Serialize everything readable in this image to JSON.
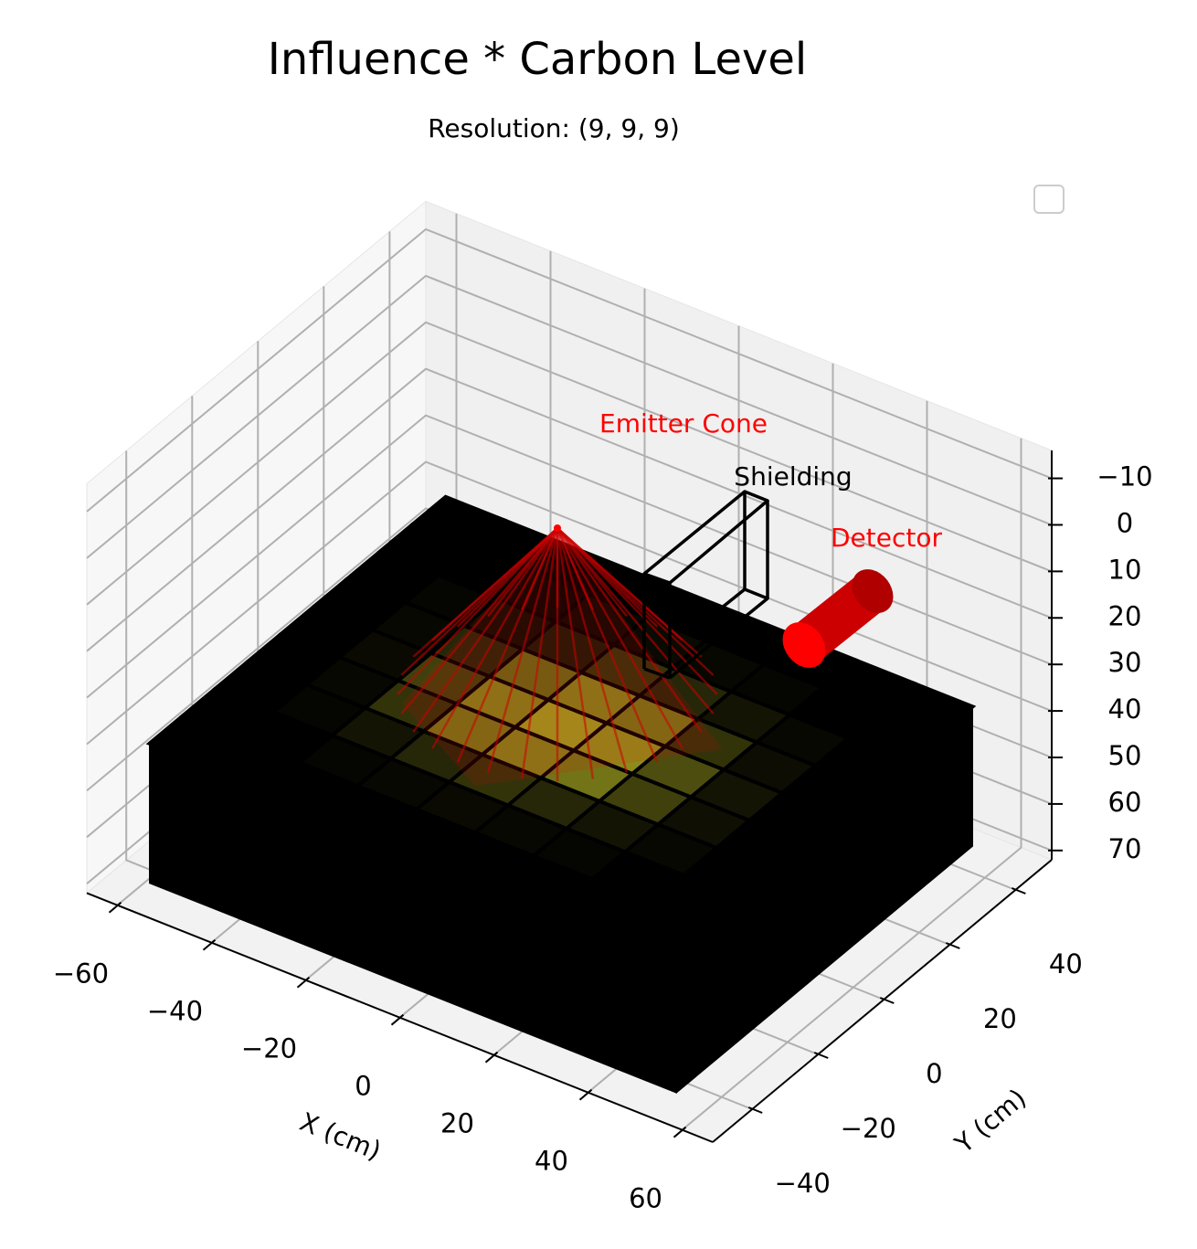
{
  "chart_data": {
    "type": "voxel3d",
    "title": "Influence * Carbon Level",
    "subtitle": "Resolution: (9, 9, 9)",
    "xlabel": "X (cm)",
    "ylabel": "Y (cm)",
    "xlim": [
      -66.5,
      66.5
    ],
    "ylim": [
      -52,
      51
    ],
    "zlim": [
      -16,
      72
    ],
    "z_inverted": true,
    "grid": true,
    "xticks": [
      {
        "value": -60,
        "label": "−60"
      },
      {
        "value": -40,
        "label": "−40"
      },
      {
        "value": -20,
        "label": "−20"
      },
      0,
      20,
      40,
      60
    ],
    "yticks": [
      {
        "value": -40,
        "label": "−40"
      },
      {
        "value": -20,
        "label": "−20"
      },
      0,
      20,
      40
    ],
    "zticks": [
      {
        "value": -10,
        "label": "−10"
      },
      0,
      10,
      20,
      30,
      40,
      50,
      60,
      70
    ],
    "block": {
      "x": [
        -56,
        56
      ],
      "y": [
        -48,
        42
      ],
      "z": [
        38,
        68
      ],
      "color": "#000000"
    },
    "top_layer": {
      "color": "#ffff33",
      "values": [
        [
          0,
          0,
          0,
          0,
          0,
          0,
          0,
          0,
          0
        ],
        [
          0,
          0,
          0.02,
          0.03,
          0.04,
          0.03,
          0.02,
          0,
          0
        ],
        [
          0,
          0.02,
          0.08,
          0.2,
          0.25,
          0.15,
          0.05,
          0.02,
          0
        ],
        [
          0,
          0.03,
          0.15,
          0.45,
          0.5,
          0.4,
          0.1,
          0.03,
          0
        ],
        [
          0,
          0.04,
          0.2,
          0.5,
          0.6,
          0.5,
          0.2,
          0.04,
          0
        ],
        [
          0,
          0.03,
          0.15,
          0.45,
          0.55,
          0.45,
          0.15,
          0.03,
          0
        ],
        [
          0,
          0.02,
          0.08,
          0.25,
          0.3,
          0.2,
          0.08,
          0.02,
          0
        ],
        [
          0,
          0,
          0.03,
          0.06,
          0.08,
          0.05,
          0.03,
          0,
          0
        ],
        [
          0,
          0,
          0,
          0,
          0,
          0,
          0,
          0,
          0
        ]
      ]
    },
    "annotations": [
      {
        "text": "Emitter Cone",
        "color": "#ff0000"
      },
      {
        "text": "Shielding",
        "color": "#000000"
      },
      {
        "text": "Detector",
        "color": "#ff0000"
      }
    ]
  }
}
